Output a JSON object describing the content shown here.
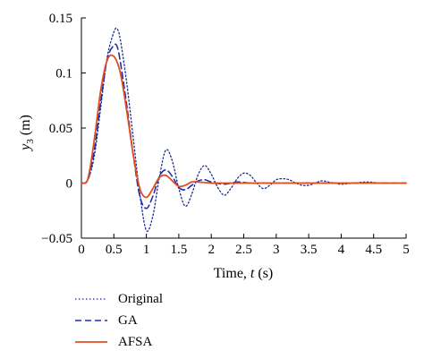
{
  "chart_data": {
    "type": "line",
    "xlabel": "Time, ",
    "xlabel_var": "t",
    "xlabel_unit": " (s)",
    "ylabel_var": "y",
    "ylabel_sub": "3",
    "ylabel_unit": " (m)",
    "xlim": [
      0,
      5
    ],
    "ylim": [
      -0.05,
      0.15
    ],
    "xticks": [
      0,
      0.5,
      1,
      1.5,
      2,
      2.5,
      3,
      3.5,
      4,
      4.5,
      5
    ],
    "xtick_labels": [
      "0",
      "0.5",
      "1",
      "1.5",
      "2",
      "2.5",
      "3",
      "3.5",
      "4",
      "4.5",
      "5"
    ],
    "yticks": [
      -0.05,
      0,
      0.05,
      0.1,
      0.15
    ],
    "ytick_labels": [
      "−0.05",
      "0",
      "0.05",
      "0.1",
      "0.15"
    ],
    "grid": false,
    "legend_position": "bottom-left, below plot",
    "series": [
      {
        "name": "Original",
        "color": "#1a2a8a",
        "style": "dotted",
        "x": [
          0,
          0.1,
          0.2,
          0.3,
          0.4,
          0.5,
          0.55,
          0.6,
          0.7,
          0.8,
          0.9,
          1.0,
          1.1,
          1.2,
          1.3,
          1.4,
          1.5,
          1.6,
          1.7,
          1.8,
          1.9,
          2.0,
          2.1,
          2.2,
          2.3,
          2.4,
          2.5,
          2.6,
          2.7,
          2.8,
          2.9,
          3.0,
          3.1,
          3.2,
          3.3,
          3.4,
          3.5,
          3.6,
          3.7,
          3.8,
          3.9,
          4.0,
          4.2,
          4.4,
          4.6,
          4.8,
          5.0
        ],
        "values": [
          0,
          0.003,
          0.025,
          0.07,
          0.115,
          0.137,
          0.14,
          0.13,
          0.09,
          0.04,
          -0.01,
          -0.043,
          -0.03,
          0.005,
          0.03,
          0.02,
          -0.005,
          -0.021,
          -0.01,
          0.008,
          0.016,
          0.008,
          -0.004,
          -0.011,
          -0.005,
          0.004,
          0.009,
          0.007,
          0.0,
          -0.005,
          -0.002,
          0.003,
          0.004,
          0.003,
          0.0,
          -0.002,
          -0.002,
          0.0,
          0.002,
          0.001,
          0.0,
          -0.001,
          0.0,
          0.001,
          0.0,
          0.0,
          0.0
        ]
      },
      {
        "name": "GA",
        "color": "#1f2fb0",
        "style": "dashed",
        "x": [
          0,
          0.1,
          0.2,
          0.3,
          0.4,
          0.5,
          0.55,
          0.6,
          0.7,
          0.8,
          0.9,
          1.0,
          1.1,
          1.2,
          1.3,
          1.4,
          1.5,
          1.6,
          1.7,
          1.8,
          1.9,
          2.0,
          2.2,
          2.4,
          2.6,
          2.8,
          3.0,
          3.5,
          4.0,
          4.5,
          5.0
        ],
        "values": [
          0,
          0.003,
          0.03,
          0.075,
          0.113,
          0.125,
          0.124,
          0.11,
          0.07,
          0.025,
          -0.012,
          -0.023,
          -0.012,
          0.006,
          0.012,
          0.006,
          -0.004,
          -0.006,
          -0.002,
          0.002,
          0.003,
          0.001,
          -0.001,
          0.001,
          0.0,
          0.0,
          0.0,
          0.0,
          0.0,
          0.0,
          0.0
        ]
      },
      {
        "name": "AFSA",
        "color": "#e04e1f",
        "style": "solid",
        "x": [
          0,
          0.1,
          0.2,
          0.3,
          0.4,
          0.5,
          0.6,
          0.7,
          0.8,
          0.9,
          1.0,
          1.1,
          1.2,
          1.3,
          1.4,
          1.5,
          1.6,
          1.7,
          1.8,
          2.0,
          2.2,
          2.5,
          3.0,
          3.5,
          4.0,
          4.5,
          5.0
        ],
        "values": [
          0,
          0.004,
          0.04,
          0.085,
          0.112,
          0.115,
          0.1,
          0.065,
          0.025,
          -0.005,
          -0.013,
          -0.005,
          0.005,
          0.007,
          0.002,
          -0.003,
          -0.002,
          0.001,
          0.001,
          0.0,
          0.0,
          0.0,
          0.0,
          0.0,
          0.0,
          0.0,
          0.0
        ]
      }
    ]
  }
}
